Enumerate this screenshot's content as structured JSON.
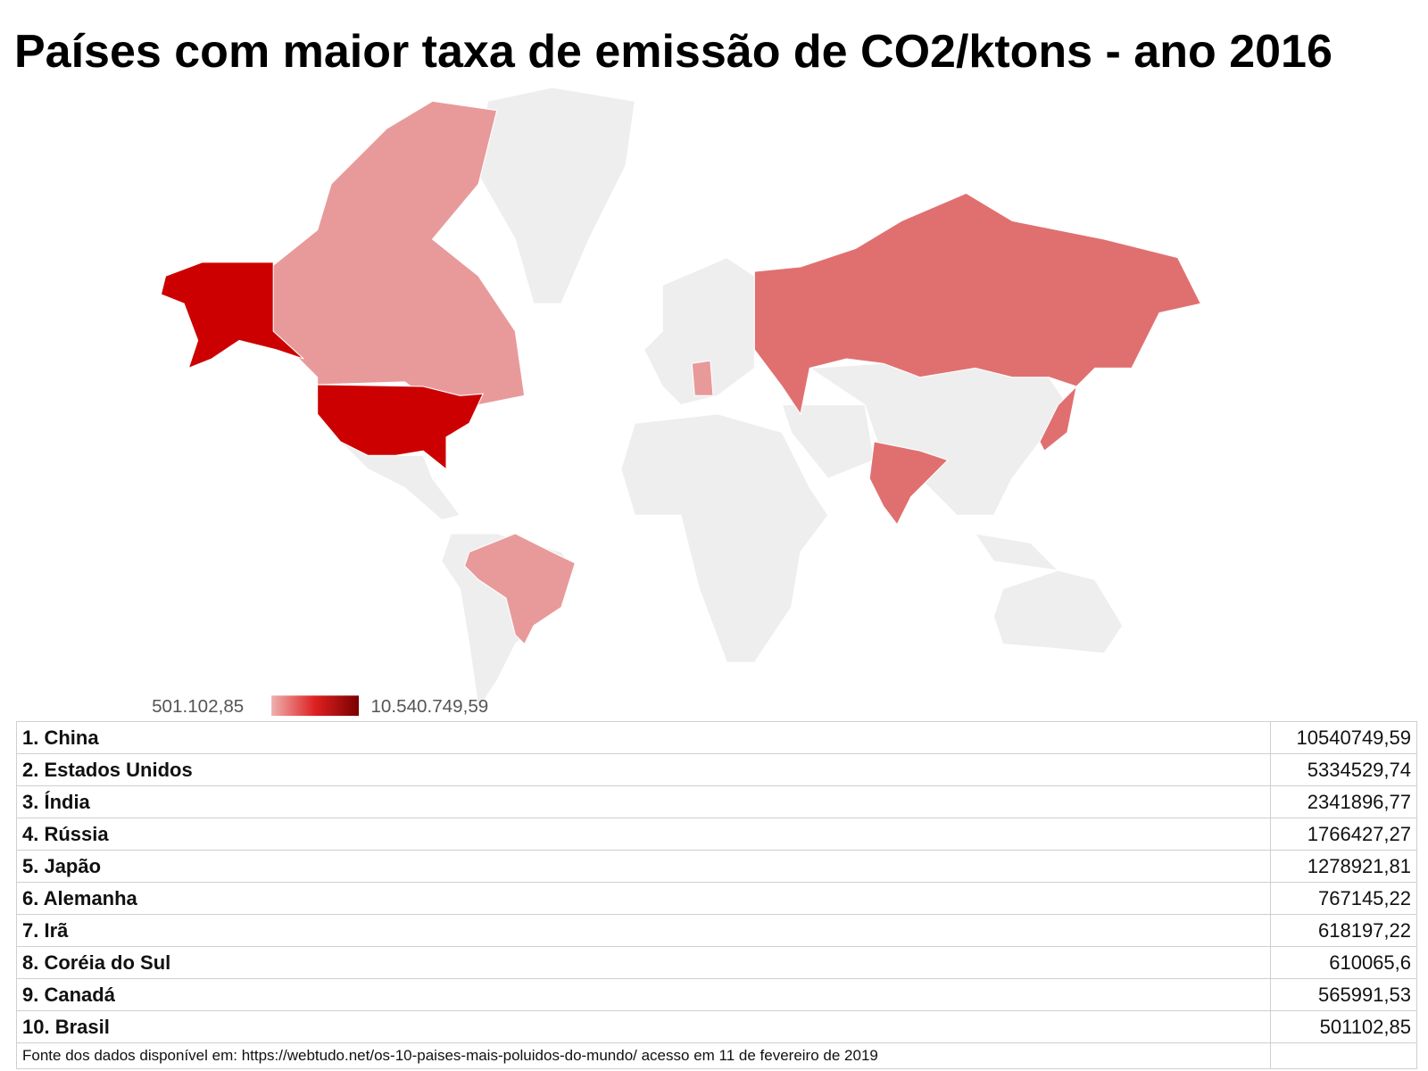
{
  "title": "Países com maior taxa de emissão de CO2/ktons - ano 2016",
  "legend": {
    "min_label": "501.102,85",
    "max_label": "10.540.749,59"
  },
  "table": {
    "rows": [
      [
        "1. China",
        "10540749,59"
      ],
      [
        "2. Estados Unidos",
        "5334529,74"
      ],
      [
        "3. Índia",
        "2341896,77"
      ],
      [
        "4. Rússia",
        "1766427,27"
      ],
      [
        "5. Japão",
        "1278921,81"
      ],
      [
        "6. Alemanha",
        "767145,22"
      ],
      [
        "7. Irã",
        "618197,22"
      ],
      [
        "8. Coréia do Sul",
        "610065,6"
      ],
      [
        "9. Canadá",
        "565991,53"
      ],
      [
        "10. Brasil",
        "501102,85"
      ]
    ]
  },
  "footnote": "Fonte dos dados disponível em: https://webtudo.net/os-10-paises-mais-poluidos-do-mundo/ acesso em  11 de fevereiro de 2019"
}
